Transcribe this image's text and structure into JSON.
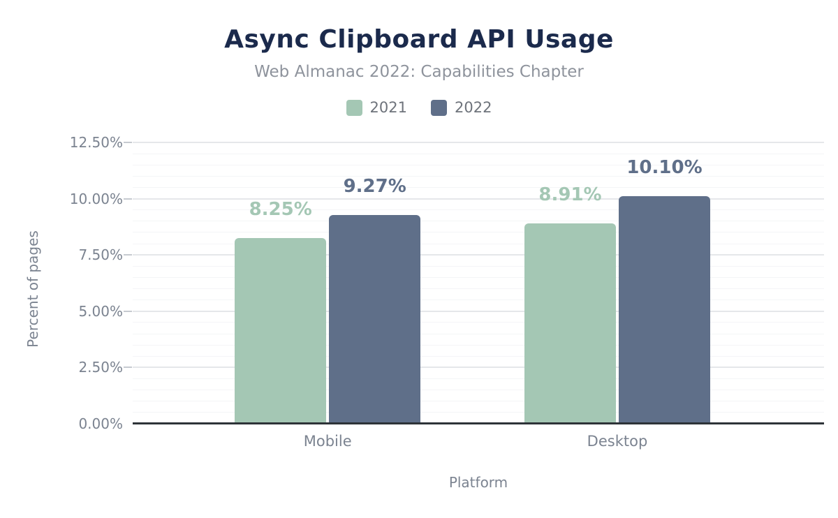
{
  "chart_data": {
    "type": "bar",
    "title": "Async Clipboard API Usage",
    "subtitle": "Web Almanac 2022: Capabilities Chapter",
    "xlabel": "Platform",
    "ylabel": "Percent of pages",
    "categories": [
      "Mobile",
      "Desktop"
    ],
    "series": [
      {
        "name": "2021",
        "color": "#a4c7b4",
        "values": [
          8.25,
          8.91
        ],
        "labels": [
          "8.25%",
          "8.91%"
        ]
      },
      {
        "name": "2022",
        "color": "#5f6f89",
        "values": [
          9.27,
          10.1
        ],
        "labels": [
          "9.27%",
          "10.10%"
        ]
      }
    ],
    "ylim": [
      0,
      12.5
    ],
    "yticks": [
      {
        "value": 0,
        "label": "0.00%"
      },
      {
        "value": 2.5,
        "label": "2.50%"
      },
      {
        "value": 5,
        "label": "5.00%"
      },
      {
        "value": 7.5,
        "label": "7.50%"
      },
      {
        "value": 10,
        "label": "10.00%"
      },
      {
        "value": 12.5,
        "label": "12.50%"
      }
    ],
    "minor_step": 0.5,
    "grid": true,
    "legend_position": "top",
    "colors": {
      "title": "#1b2a4c",
      "subtitle": "#8e939c",
      "axis_text": "#7b8390",
      "legend_text": "#6e737b",
      "axis_line": "#2e3338",
      "grid_major": "#e5e7ea",
      "grid_minor": "#f4f5f7",
      "background": "#ffffff"
    }
  }
}
